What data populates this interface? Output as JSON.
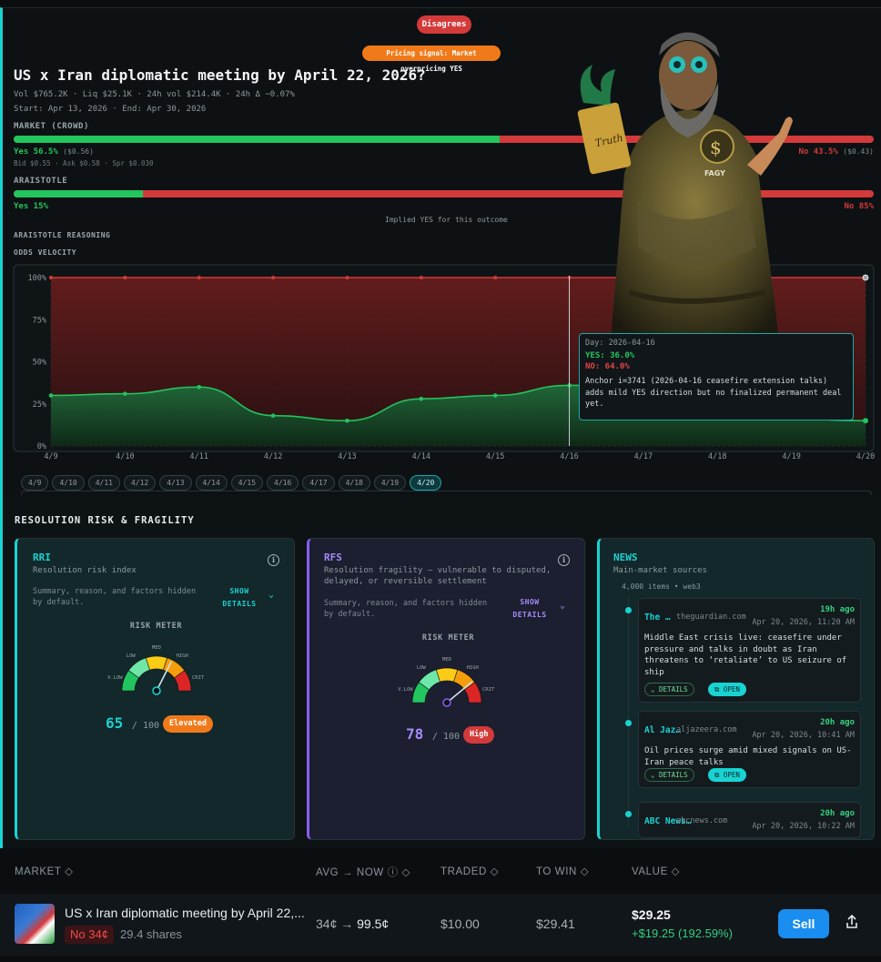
{
  "header": {
    "disagree_badge": "Disagrees",
    "pricing_signal": "Pricing signal: Market overpricing YES",
    "title": "US x Iran diplomatic meeting by April 22, 2026?",
    "stats": "Vol $765.2K · Liq $25.1K · 24h vol $214.4K · 24h Δ −0.07%",
    "dates": "Start: Apr 13, 2026 · End: Apr 30, 2026"
  },
  "market": {
    "label": "MARKET (CROWD)",
    "yes_fraction": 0.565,
    "yes_label": "Yes 56.5%",
    "yes_price": "($0.56)",
    "no_label": "No 43.5%",
    "no_price": "($0.43)",
    "bid_ask": "Bid $0.55 · Ask $0.58 · Spr $0.030",
    "colors": {
      "yes": "#22c55e",
      "no": "#d33a3a"
    }
  },
  "araistotle": {
    "label": "ARAISTOTLE",
    "yes_fraction": 0.15,
    "yes_label": "Yes 15%",
    "no_label": "No 85%",
    "implied": "Implied YES for this outcome",
    "reasoning_label": "ARAISTOTLE REASONING",
    "mascot_icon": "philosopher-mascot-icon"
  },
  "velocity": {
    "label": "ODDS VELOCITY",
    "tooltip": {
      "day": "Day: 2026-04-16",
      "yes": "YES: 36.0%",
      "no": "NO: 64.0%",
      "note": "Anchor i=3741 (2026-04-16 ceasefire extension talks) adds mild YES direction but no finalized permanent deal yet."
    },
    "day_chips": [
      "4/9",
      "4/10",
      "4/11",
      "4/12",
      "4/13",
      "4/14",
      "4/15",
      "4/16",
      "4/17",
      "4/18",
      "4/19",
      "4/20"
    ],
    "active_chip": "4/20"
  },
  "chart_data": {
    "type": "line",
    "x": [
      "4/9",
      "4/10",
      "4/11",
      "4/12",
      "4/13",
      "4/14",
      "4/15",
      "4/16",
      "4/17",
      "4/18",
      "4/19",
      "4/20"
    ],
    "yticks": [
      "0%",
      "25%",
      "50%",
      "75%",
      "100%"
    ],
    "ylim": [
      0,
      100
    ],
    "series": [
      {
        "name": "YES",
        "color": "#22c55e",
        "values": [
          30,
          31,
          35,
          18,
          15,
          28,
          30,
          36,
          null,
          null,
          null,
          15
        ]
      },
      {
        "name": "NO",
        "color": "#d33a3a",
        "values": [
          100,
          100,
          100,
          100,
          100,
          100,
          100,
          100,
          null,
          null,
          null,
          100
        ]
      }
    ],
    "hover_x": "4/16",
    "grid": true
  },
  "risk": {
    "section_title": "RESOLUTION RISK & FRAGILITY",
    "rri": {
      "title": "RRI",
      "subtitle": "Resolution risk index",
      "summary": "Summary, reason, and factors hidden by default.",
      "show_details": "SHOW DETAILS",
      "meter_label": "RISK METER",
      "score": "65",
      "out_of": "/ 100",
      "badge": "Elevated",
      "accent": "#19d3d3",
      "badge_color": "#f07a1a",
      "needle_fraction": 0.65
    },
    "rfs": {
      "title": "RFS",
      "subtitle": "Resolution fragility — vulnerable to disputed, delayed, or reversible settlement",
      "summary": "Summary, reason, and factors hidden by default.",
      "show_details": "SHOW DETAILS",
      "meter_label": "RISK METER",
      "score": "78",
      "out_of": "/ 100",
      "badge": "High",
      "accent": "#8b5cf6",
      "badge_color": "#d33a3a",
      "needle_fraction": 0.78
    },
    "gauge_labels": {
      "vlow": "V.LOW",
      "low": "LOW",
      "med": "MED",
      "high": "HIGH",
      "crit": "CRIT"
    },
    "news": {
      "title": "NEWS",
      "subtitle": "Main-market sources",
      "meta": "4,000 items • web3",
      "details_label": "DETAILS",
      "open_label": "OPEN",
      "items": [
        {
          "source": "The …",
          "domain": "theguardian.com",
          "ago": "19h ago",
          "date": "Apr 20, 2026, 11:20 AM",
          "headline": "Middle East crisis live: ceasefire under pressure and talks in doubt as Iran threatens to ‘retaliate’ to US seizure of ship"
        },
        {
          "source": "Al Jaz…",
          "domain": "aljazeera.com",
          "ago": "20h ago",
          "date": "Apr 20, 2026, 10:41 AM",
          "headline": "Oil prices surge amid mixed signals on US-Iran peace talks"
        },
        {
          "source": "ABC News…",
          "domain": "abcnews.com",
          "ago": "20h ago",
          "date": "Apr 20, 2026, 10:22 AM",
          "headline": ""
        }
      ]
    }
  },
  "positions": {
    "headers": {
      "market": "MARKET",
      "avg_now": "AVG → NOW",
      "traded": "TRADED",
      "to_win": "TO WIN",
      "value": "VALUE"
    },
    "row": {
      "market": "US x Iran diplomatic meeting by April 22,...",
      "side": "No 34¢",
      "shares": "29.4 shares",
      "avg": "34¢",
      "arrow": "→",
      "now": "99.5¢",
      "traded": "$10.00",
      "to_win": "$29.41",
      "value": "$29.25",
      "pnl": "+$19.25 (192.59%)",
      "sell": "Sell"
    }
  }
}
